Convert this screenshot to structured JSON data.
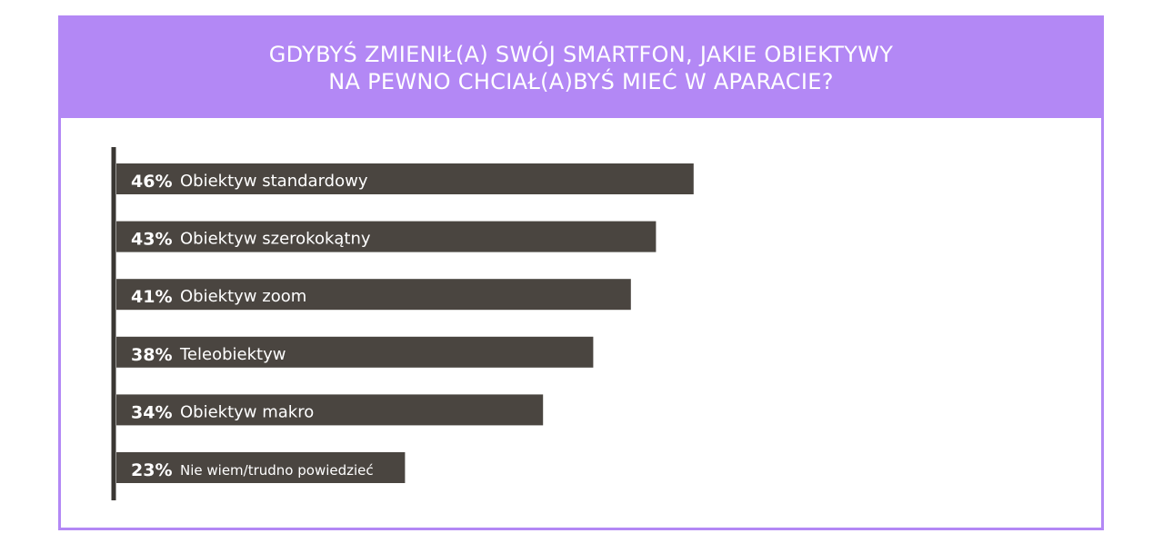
{
  "colors": {
    "accent": "#b388f5",
    "bar": "#4a4540",
    "axis": "#3a3733",
    "text_on_bar": "#ffffff"
  },
  "chart_data": {
    "type": "bar",
    "orientation": "horizontal",
    "title_lines": [
      "GDYBYŚ ZMIENIŁ(A) SWÓJ SMARTFON, JAKIE OBIEKTYWY",
      "NA PEWNO CHCIAŁ(A)BYŚ MIEĆ W APARACIE?"
    ],
    "unit": "%",
    "xlim": [
      0,
      100
    ],
    "grid": false,
    "legend": "none",
    "categories": [
      "Obiektyw standardowy",
      "Obiektyw szerokokątny",
      "Obiektyw zoom",
      "Teleobiektyw",
      "Obiektyw makro",
      "Nie wiem/trudno powiedzieć"
    ],
    "values": [
      46,
      43,
      41,
      38,
      34,
      23
    ],
    "value_labels": [
      "46%",
      "43%",
      "41%",
      "38%",
      "34%",
      "23%"
    ]
  }
}
